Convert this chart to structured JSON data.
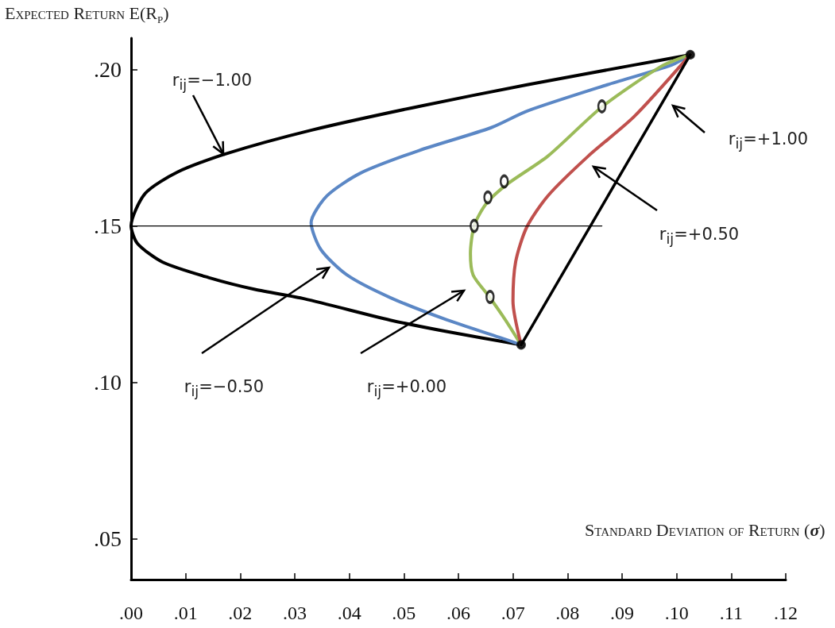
{
  "chart_data": {
    "type": "line",
    "xlabel": "Standard Deviation of Return (σ)",
    "ylabel": "Expected Return E(R$_{p}$)",
    "xlim": [
      0,
      0.12
    ],
    "ylim": [
      0.037,
      0.21
    ],
    "xticks": [
      {
        "value": 0,
        "label": ".00"
      },
      {
        "value": 0.01,
        "label": ".01"
      },
      {
        "value": 0.02,
        "label": ".02"
      },
      {
        "value": 0.03,
        "label": ".03"
      },
      {
        "value": 0.04,
        "label": ".04"
      },
      {
        "value": 0.05,
        "label": ".05"
      },
      {
        "value": 0.06,
        "label": ".06"
      },
      {
        "value": 0.07,
        "label": ".07"
      },
      {
        "value": 0.08,
        "label": ".08"
      },
      {
        "value": 0.09,
        "label": ".09"
      },
      {
        "value": 0.1,
        "label": ".10"
      },
      {
        "value": 0.11,
        "label": ".11"
      },
      {
        "value": 0.12,
        "label": ".12"
      }
    ],
    "yticks": [
      {
        "value": 0.05,
        "label": ".05"
      },
      {
        "value": 0.1,
        "label": ".10"
      },
      {
        "value": 0.15,
        "label": ".15"
      },
      {
        "value": 0.2,
        "label": ".20"
      }
    ],
    "grid": false,
    "marker": "none",
    "line_style": "solid",
    "series": [
      {
        "color": "#000000",
        "x": [
          0.0715,
          0.058,
          0.0475,
          0.0318,
          0.0227,
          0.0142,
          0.0058,
          0.0012,
          0,
          0.0026,
          0.0085,
          0.0173,
          0.0331,
          0.0528,
          0.0726,
          0.0922,
          0.1025
        ],
        "values": [
          0.112,
          0.1162,
          0.1199,
          0.1267,
          0.1297,
          0.1335,
          0.1384,
          0.1443,
          0.15,
          0.1604,
          0.1672,
          0.173,
          0.1806,
          0.1882,
          0.1951,
          0.2014,
          0.2047
        ]
      },
      {
        "color": "#5b87c5",
        "x": [
          0.0715,
          0.0675,
          0.058,
          0.0475,
          0.0396,
          0.0348,
          0.033,
          0.0359,
          0.0421,
          0.0528,
          0.066,
          0.0726,
          0.0873,
          0.0991,
          0.1025
        ],
        "values": [
          0.112,
          0.1144,
          0.1199,
          0.1271,
          0.1343,
          0.1424,
          0.151,
          0.1596,
          0.1669,
          0.1741,
          0.1814,
          0.1867,
          0.1951,
          0.2014,
          0.2047
        ]
      },
      {
        "color": "#9bbb59",
        "x": [
          0.0715,
          0.0686,
          0.0656,
          0.0627,
          0.0622,
          0.0629,
          0.0651,
          0.069,
          0.0764,
          0.0863,
          0.0971,
          0.1025
        ],
        "values": [
          0.112,
          0.12,
          0.1275,
          0.1343,
          0.1411,
          0.1501,
          0.1571,
          0.1634,
          0.1723,
          0.188,
          0.2009,
          0.2047
        ]
      },
      {
        "color": "#c0504d",
        "x": [
          0.0715,
          0.07,
          0.0705,
          0.0725,
          0.0764,
          0.0838,
          0.0922,
          0.1025
        ],
        "values": [
          0.112,
          0.126,
          0.1386,
          0.1495,
          0.1596,
          0.1723,
          0.1849,
          0.2047
        ]
      },
      {
        "color": "#000000",
        "x": [
          0.0715,
          0.1025
        ],
        "values": [
          0.112,
          0.2047
        ]
      },
      {
        "color": "#000000",
        "x": [
          0,
          0.0863
        ],
        "values": [
          0.15,
          0.15
        ]
      },
      {
        "type": "scatter",
        "marker": "circle",
        "color": "#000000",
        "x": [
          0.0629,
          0.0654,
          0.0684,
          0.0863,
          0.0658
        ],
        "values": [
          0.15,
          0.1591,
          0.1642,
          0.1882,
          0.1273
        ]
      },
      {
        "type": "scatter",
        "marker": "circle",
        "color": "#000000",
        "x": [
          0.0715,
          0.1025
        ],
        "values": [
          0.112,
          0.2047
        ]
      }
    ],
    "annotations": [
      {
        "text": "r$_{ij}$=−1.00",
        "x": 0.0169,
        "y": 0.173
      },
      "r$_{ij}$=+1.00",
      "r$_{ij}$=+0.50",
      "r$_{ij}$=−0.50",
      "r$_{ij}$=+0.00"
    ]
  }
}
